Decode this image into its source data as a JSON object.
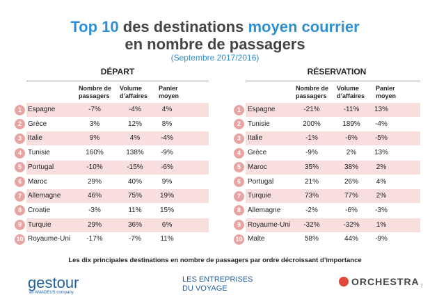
{
  "title": {
    "line1": [
      {
        "text": "Top 10",
        "accent": true
      },
      {
        "text": "des destinations",
        "accent": false
      },
      {
        "text": "moyen courrier",
        "accent": true
      }
    ],
    "line2": "en nombre de passagers",
    "subtitle": "(Septembre 2017/2016)"
  },
  "tables": [
    {
      "heading": "DÉPART",
      "columns": [
        "Nombre de\npassagers",
        "Volume\nd’affaires",
        "Panier\nmoyen"
      ],
      "rows": [
        [
          1,
          "Espagne",
          "-7%",
          "-4%",
          "4%"
        ],
        [
          2,
          "Grèce",
          "3%",
          "12%",
          "8%"
        ],
        [
          3,
          "Italie",
          "9%",
          "4%",
          "-4%"
        ],
        [
          4,
          "Tunisie",
          "160%",
          "138%",
          "-9%"
        ],
        [
          5,
          "Portugal",
          "-10%",
          "-15%",
          "-6%"
        ],
        [
          6,
          "Maroc",
          "29%",
          "40%",
          "9%"
        ],
        [
          7,
          "Allemagne",
          "46%",
          "75%",
          "19%"
        ],
        [
          8,
          "Croatie",
          "-3%",
          "11%",
          "15%"
        ],
        [
          9,
          "Turquie",
          "29%",
          "36%",
          "6%"
        ],
        [
          10,
          "Royaume-Uni",
          "-17%",
          "-7%",
          "11%"
        ]
      ]
    },
    {
      "heading": "RÉSERVATION",
      "columns": [
        "Nombre de\npassagers",
        "Volume\nd’affaires",
        "Panier\nmoyen"
      ],
      "rows": [
        [
          1,
          "Espagne",
          "-21%",
          "-11%",
          "13%"
        ],
        [
          2,
          "Tunisie",
          "200%",
          "189%",
          "-4%"
        ],
        [
          3,
          "Italie",
          "-1%",
          "-6%",
          "-5%"
        ],
        [
          4,
          "Grèce",
          "-9%",
          "2%",
          "13%"
        ],
        [
          5,
          "Maroc",
          "35%",
          "38%",
          "2%"
        ],
        [
          6,
          "Portugal",
          "21%",
          "26%",
          "4%"
        ],
        [
          7,
          "Turquie",
          "73%",
          "77%",
          "2%"
        ],
        [
          8,
          "Allemagne",
          "-2%",
          "-6%",
          "-3%"
        ],
        [
          9,
          "Royaume-Uni",
          "-32%",
          "-32%",
          "1%"
        ],
        [
          10,
          "Malte",
          "58%",
          "44%",
          "-9%"
        ]
      ]
    }
  ],
  "note": "Les dix principales destinations en nombre de passagers par ordre décroissant d’importance",
  "logos": {
    "gestour": "gestour",
    "gestour_sub": "an AMADEUS company",
    "edv_line1": "LES ENTREPRISES",
    "edv_line2": "DU VOYAGE",
    "orchestra": "ORCHESTRA"
  },
  "page_number": "7"
}
